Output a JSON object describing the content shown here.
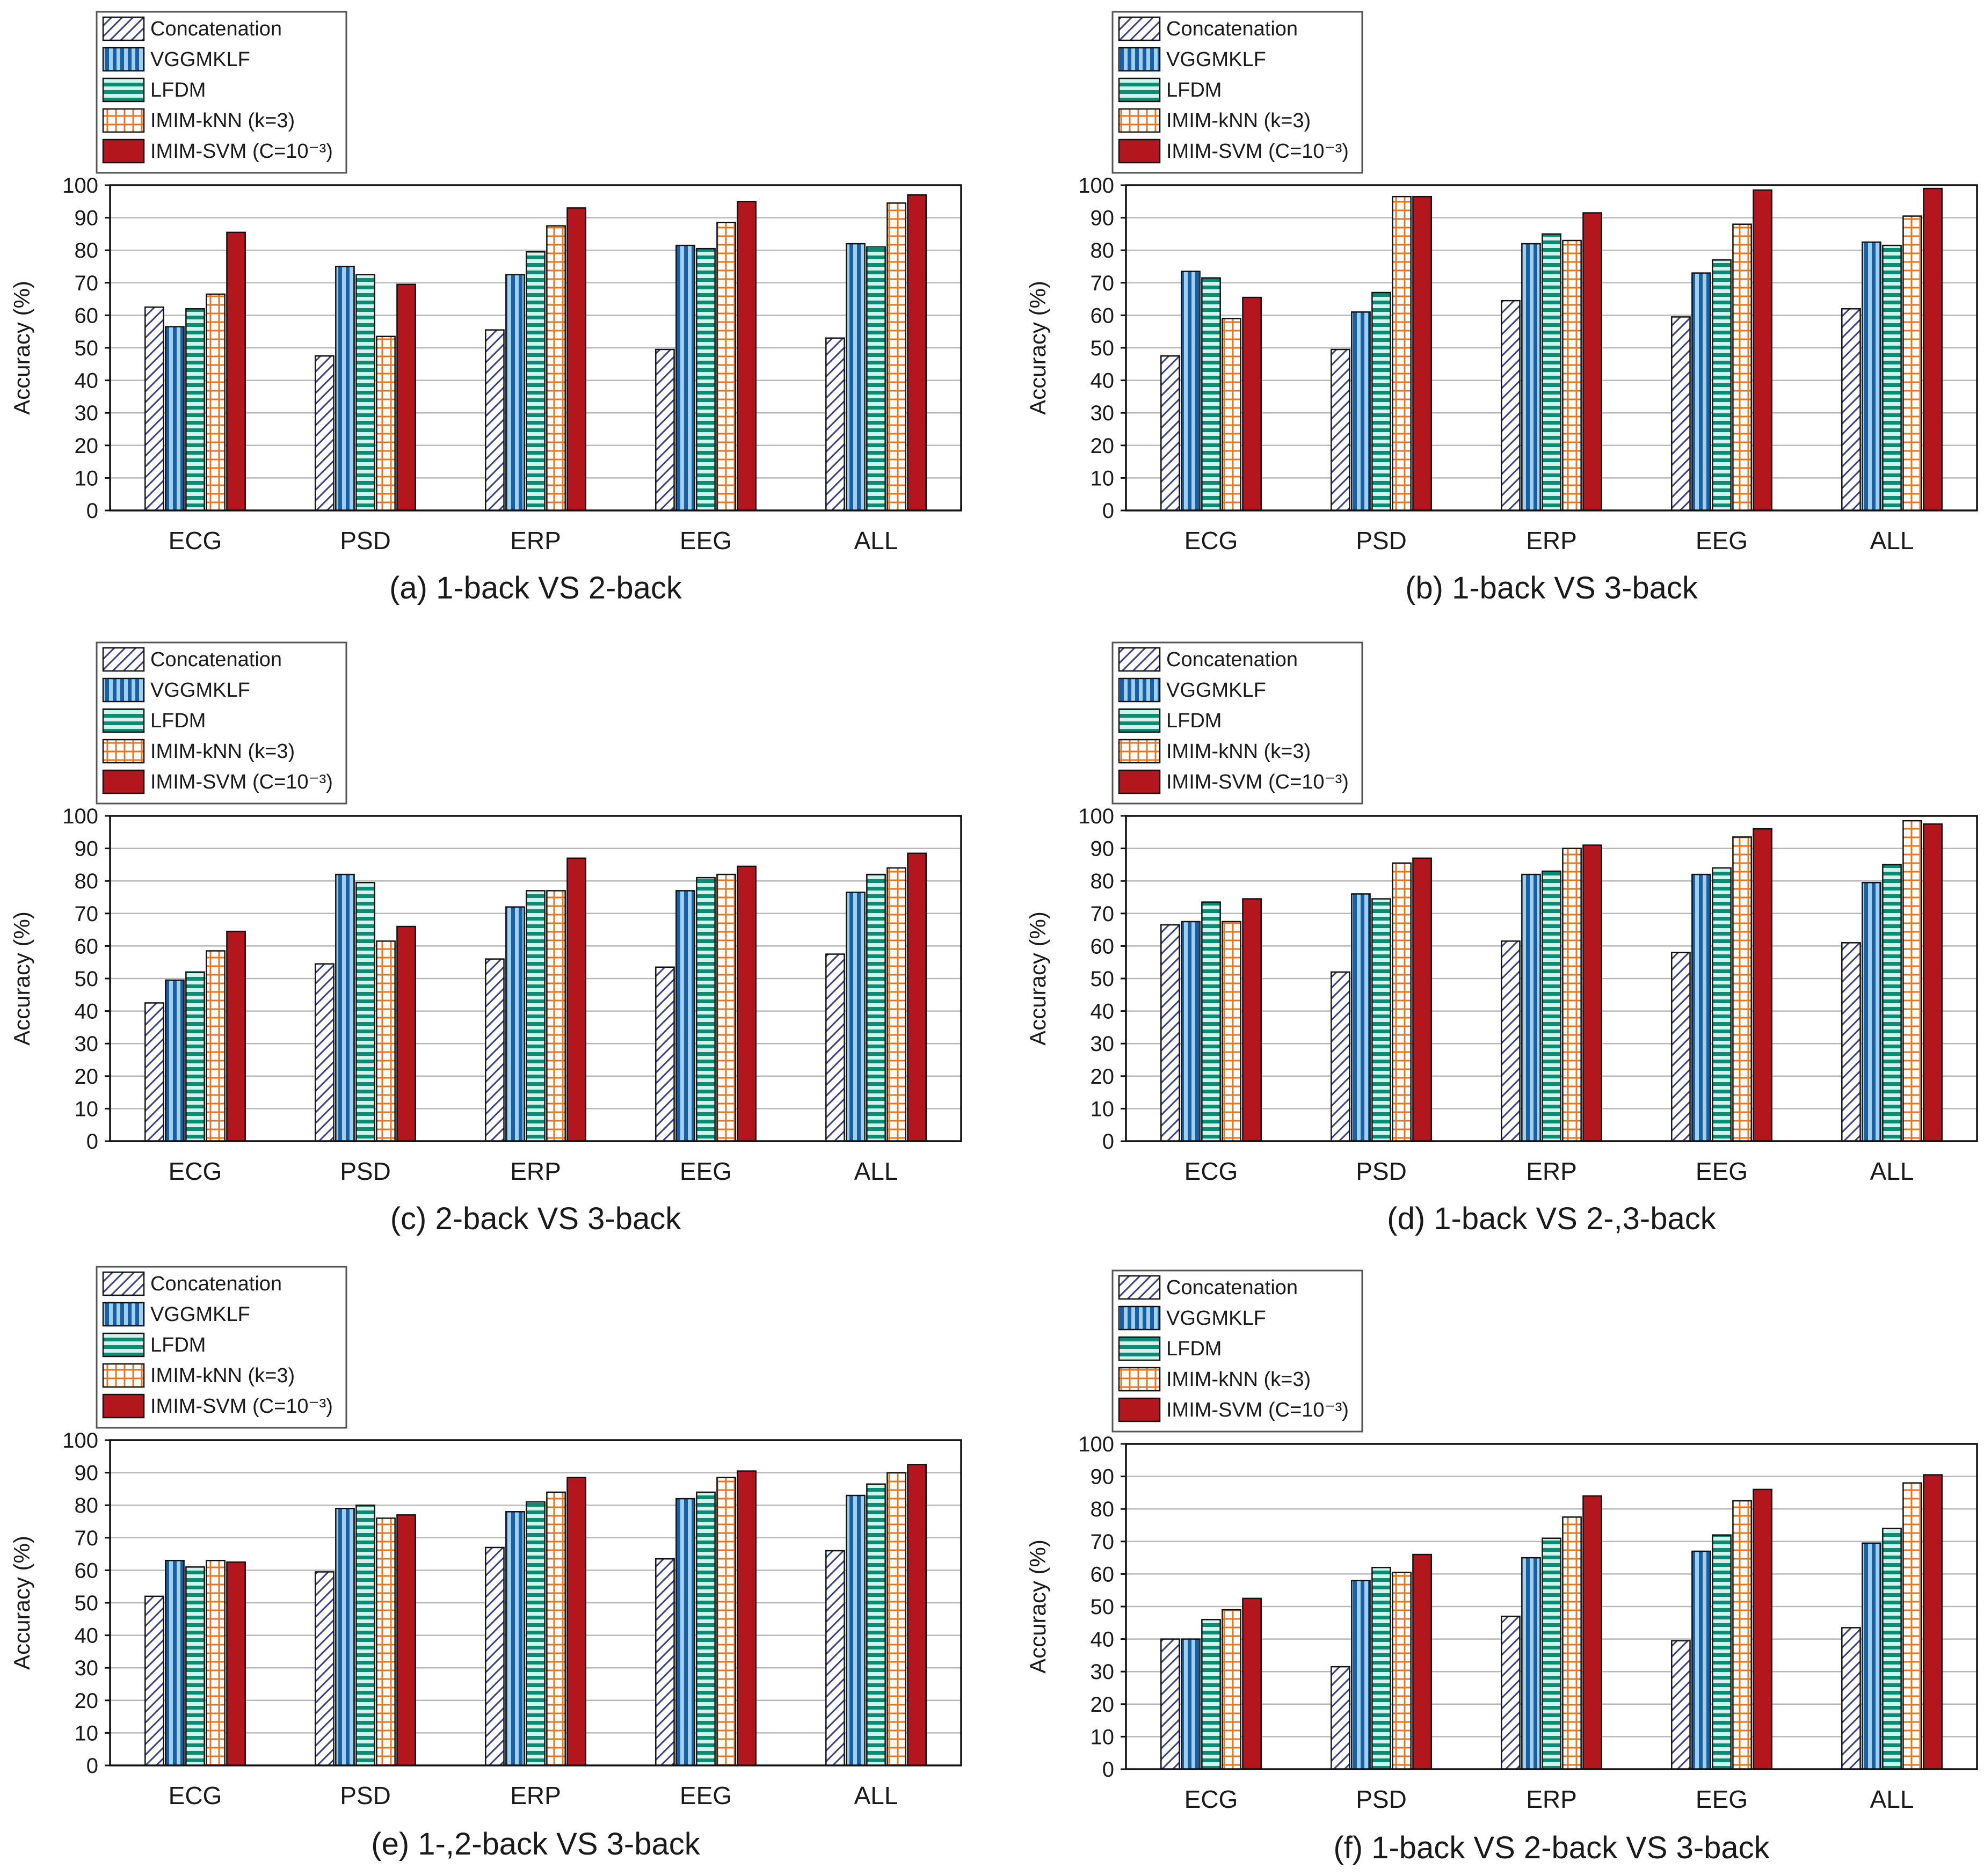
{
  "figure": {
    "ylabel": "Accuracy (%)",
    "legend": [
      "Concatenation",
      "VGGMKLF",
      "LFDM",
      "IMIM-kNN (k=3)",
      "IMIM-SVM (C=10⁻³)"
    ]
  },
  "chart_data": [
    {
      "type": "bar",
      "title": "(a) 1-back VS 2-back",
      "ylabel": "Accuracy (%)",
      "ylim": [
        0,
        100
      ],
      "yticks": [
        0,
        10,
        20,
        30,
        40,
        50,
        60,
        70,
        80,
        90,
        100
      ],
      "categories": [
        "ECG",
        "PSD",
        "ERP",
        "EEG",
        "ALL"
      ],
      "series": [
        {
          "name": "Concatenation",
          "values": [
            62.5,
            47.5,
            55.5,
            49.5,
            53
          ]
        },
        {
          "name": "VGGMKLF",
          "values": [
            56.5,
            75,
            72.5,
            81.5,
            82
          ]
        },
        {
          "name": "LFDM",
          "values": [
            62,
            72.5,
            79.5,
            80.5,
            81
          ]
        },
        {
          "name": "IMIM-kNN (k=3)",
          "values": [
            66.5,
            53.5,
            87.5,
            88.5,
            94.5
          ]
        },
        {
          "name": "IMIM-SVM (C=10⁻³)",
          "values": [
            85.5,
            69.5,
            93,
            95,
            97
          ]
        }
      ]
    },
    {
      "type": "bar",
      "title": "(b) 1-back VS 3-back",
      "ylabel": "Accuracy (%)",
      "ylim": [
        0,
        100
      ],
      "yticks": [
        0,
        10,
        20,
        30,
        40,
        50,
        60,
        70,
        80,
        90,
        100
      ],
      "categories": [
        "ECG",
        "PSD",
        "ERP",
        "EEG",
        "ALL"
      ],
      "series": [
        {
          "name": "Concatenation",
          "values": [
            47.5,
            49.5,
            64.5,
            59.5,
            62
          ]
        },
        {
          "name": "VGGMKLF",
          "values": [
            73.5,
            61,
            82,
            73,
            82.5
          ]
        },
        {
          "name": "LFDM",
          "values": [
            71.5,
            67,
            85,
            77,
            81.5
          ]
        },
        {
          "name": "IMIM-kNN (k=3)",
          "values": [
            59,
            96.5,
            83,
            88,
            90.5
          ]
        },
        {
          "name": "IMIM-SVM (C=10⁻³)",
          "values": [
            65.5,
            96.5,
            91.5,
            98.5,
            99
          ]
        }
      ]
    },
    {
      "type": "bar",
      "title": "(c) 2-back VS 3-back",
      "ylabel": "Accuracy (%)",
      "ylim": [
        0,
        100
      ],
      "yticks": [
        0,
        10,
        20,
        30,
        40,
        50,
        60,
        70,
        80,
        90,
        100
      ],
      "categories": [
        "ECG",
        "PSD",
        "ERP",
        "EEG",
        "ALL"
      ],
      "series": [
        {
          "name": "Concatenation",
          "values": [
            42.5,
            54.5,
            56,
            53.5,
            57.5
          ]
        },
        {
          "name": "VGGMKLF",
          "values": [
            49.5,
            82,
            72,
            77,
            76.5
          ]
        },
        {
          "name": "LFDM",
          "values": [
            52,
            79.5,
            77,
            81,
            82
          ]
        },
        {
          "name": "IMIM-kNN (k=3)",
          "values": [
            58.5,
            61.5,
            77,
            82,
            84
          ]
        },
        {
          "name": "IMIM-SVM (C=10⁻³)",
          "values": [
            64.5,
            66,
            87,
            84.5,
            88.5
          ]
        }
      ]
    },
    {
      "type": "bar",
      "title": "(d) 1-back VS 2-,3-back",
      "ylabel": "Accuracy (%)",
      "ylim": [
        0,
        100
      ],
      "yticks": [
        0,
        10,
        20,
        30,
        40,
        50,
        60,
        70,
        80,
        90,
        100
      ],
      "categories": [
        "ECG",
        "PSD",
        "ERP",
        "EEG",
        "ALL"
      ],
      "series": [
        {
          "name": "Concatenation",
          "values": [
            66.5,
            52,
            61.5,
            58,
            61
          ]
        },
        {
          "name": "VGGMKLF",
          "values": [
            67.5,
            76,
            82,
            82,
            79.5
          ]
        },
        {
          "name": "LFDM",
          "values": [
            73.5,
            74.5,
            83,
            84,
            85
          ]
        },
        {
          "name": "IMIM-kNN (k=3)",
          "values": [
            67.5,
            85.5,
            90,
            93.5,
            98.5
          ]
        },
        {
          "name": "IMIM-SVM (C=10⁻³)",
          "values": [
            74.5,
            87,
            91,
            96,
            97.5
          ]
        }
      ]
    },
    {
      "type": "bar",
      "title": "(e) 1-,2-back VS 3-back",
      "ylabel": "Accuracy (%)",
      "ylim": [
        0,
        100
      ],
      "yticks": [
        0,
        10,
        20,
        30,
        40,
        50,
        60,
        70,
        80,
        90,
        100
      ],
      "categories": [
        "ECG",
        "PSD",
        "ERP",
        "EEG",
        "ALL"
      ],
      "series": [
        {
          "name": "Concatenation",
          "values": [
            52,
            59.5,
            67,
            63.5,
            66
          ]
        },
        {
          "name": "VGGMKLF",
          "values": [
            63,
            79,
            78,
            82,
            83
          ]
        },
        {
          "name": "LFDM",
          "values": [
            61,
            80,
            81,
            84,
            86.5
          ]
        },
        {
          "name": "IMIM-kNN (k=3)",
          "values": [
            63,
            76,
            84,
            88.5,
            90
          ]
        },
        {
          "name": "IMIM-SVM (C=10⁻³)",
          "values": [
            62.5,
            77,
            88.5,
            90.5,
            92.5
          ]
        }
      ]
    },
    {
      "type": "bar",
      "title": "(f) 1-back VS 2-back VS 3-back",
      "ylabel": "Accuracy (%)",
      "ylim": [
        0,
        100
      ],
      "yticks": [
        0,
        10,
        20,
        30,
        40,
        50,
        60,
        70,
        80,
        90,
        100
      ],
      "categories": [
        "ECG",
        "PSD",
        "ERP",
        "EEG",
        "ALL"
      ],
      "series": [
        {
          "name": "Concatenation",
          "values": [
            40,
            31.5,
            47,
            39.5,
            43.5
          ]
        },
        {
          "name": "VGGMKLF",
          "values": [
            40,
            58,
            65,
            67,
            69.5
          ]
        },
        {
          "name": "LFDM",
          "values": [
            46,
            62,
            71,
            72,
            74
          ]
        },
        {
          "name": "IMIM-kNN (k=3)",
          "values": [
            49,
            60.5,
            77.5,
            82.5,
            88
          ]
        },
        {
          "name": "IMIM-SVM (C=10⁻³)",
          "values": [
            52.5,
            66,
            84,
            86,
            90.5
          ]
        }
      ]
    }
  ],
  "colors": {
    "concat_stroke": "#3a3f8f",
    "vgg_dark": "#1a5fa3",
    "vgg_light": "#9fd0ec",
    "lfdm_dark": "#0e8a74",
    "lfdm_light": "#d6f1ea",
    "knn_line": "#e8761c",
    "svm_fill": "#b3171d",
    "grid": "#b8b8b8",
    "axis": "#111111"
  }
}
